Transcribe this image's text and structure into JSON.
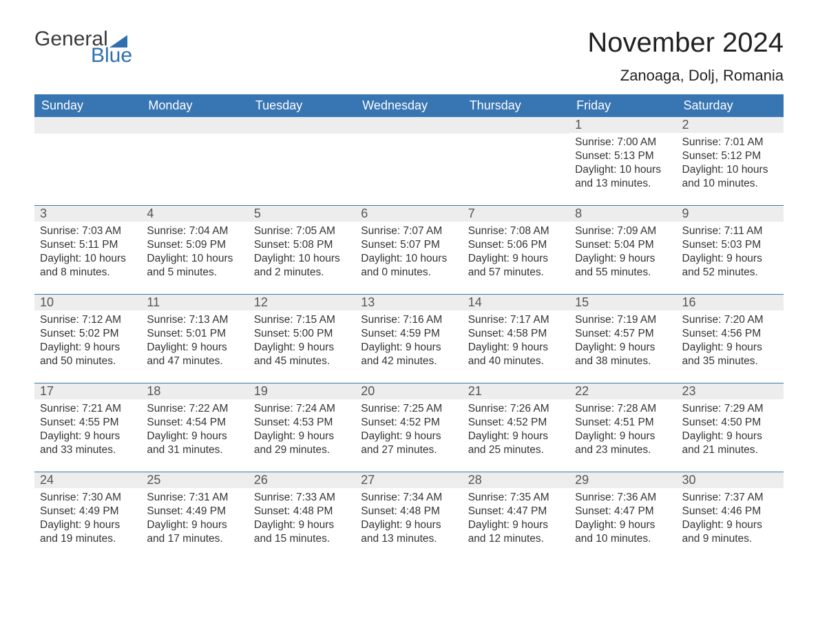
{
  "logo": {
    "text1": "General",
    "text2": "Blue"
  },
  "title": {
    "month": "November 2024",
    "location": "Zanoaga, Dolj, Romania"
  },
  "colors": {
    "header_bg": "#3875b3",
    "header_text": "#ffffff",
    "daynum_bg": "#ededed",
    "daynum_text": "#555555",
    "body_text": "#333333",
    "rule": "#3875b3",
    "logo_blue": "#2f6fb0",
    "page_bg": "#ffffff"
  },
  "weekdays": [
    "Sunday",
    "Monday",
    "Tuesday",
    "Wednesday",
    "Thursday",
    "Friday",
    "Saturday"
  ],
  "weeks": [
    [
      null,
      null,
      null,
      null,
      null,
      {
        "n": "1",
        "sunrise": "7:00 AM",
        "sunset": "5:13 PM",
        "daylight": "10 hours and 13 minutes."
      },
      {
        "n": "2",
        "sunrise": "7:01 AM",
        "sunset": "5:12 PM",
        "daylight": "10 hours and 10 minutes."
      }
    ],
    [
      {
        "n": "3",
        "sunrise": "7:03 AM",
        "sunset": "5:11 PM",
        "daylight": "10 hours and 8 minutes."
      },
      {
        "n": "4",
        "sunrise": "7:04 AM",
        "sunset": "5:09 PM",
        "daylight": "10 hours and 5 minutes."
      },
      {
        "n": "5",
        "sunrise": "7:05 AM",
        "sunset": "5:08 PM",
        "daylight": "10 hours and 2 minutes."
      },
      {
        "n": "6",
        "sunrise": "7:07 AM",
        "sunset": "5:07 PM",
        "daylight": "10 hours and 0 minutes."
      },
      {
        "n": "7",
        "sunrise": "7:08 AM",
        "sunset": "5:06 PM",
        "daylight": "9 hours and 57 minutes."
      },
      {
        "n": "8",
        "sunrise": "7:09 AM",
        "sunset": "5:04 PM",
        "daylight": "9 hours and 55 minutes."
      },
      {
        "n": "9",
        "sunrise": "7:11 AM",
        "sunset": "5:03 PM",
        "daylight": "9 hours and 52 minutes."
      }
    ],
    [
      {
        "n": "10",
        "sunrise": "7:12 AM",
        "sunset": "5:02 PM",
        "daylight": "9 hours and 50 minutes."
      },
      {
        "n": "11",
        "sunrise": "7:13 AM",
        "sunset": "5:01 PM",
        "daylight": "9 hours and 47 minutes."
      },
      {
        "n": "12",
        "sunrise": "7:15 AM",
        "sunset": "5:00 PM",
        "daylight": "9 hours and 45 minutes."
      },
      {
        "n": "13",
        "sunrise": "7:16 AM",
        "sunset": "4:59 PM",
        "daylight": "9 hours and 42 minutes."
      },
      {
        "n": "14",
        "sunrise": "7:17 AM",
        "sunset": "4:58 PM",
        "daylight": "9 hours and 40 minutes."
      },
      {
        "n": "15",
        "sunrise": "7:19 AM",
        "sunset": "4:57 PM",
        "daylight": "9 hours and 38 minutes."
      },
      {
        "n": "16",
        "sunrise": "7:20 AM",
        "sunset": "4:56 PM",
        "daylight": "9 hours and 35 minutes."
      }
    ],
    [
      {
        "n": "17",
        "sunrise": "7:21 AM",
        "sunset": "4:55 PM",
        "daylight": "9 hours and 33 minutes."
      },
      {
        "n": "18",
        "sunrise": "7:22 AM",
        "sunset": "4:54 PM",
        "daylight": "9 hours and 31 minutes."
      },
      {
        "n": "19",
        "sunrise": "7:24 AM",
        "sunset": "4:53 PM",
        "daylight": "9 hours and 29 minutes."
      },
      {
        "n": "20",
        "sunrise": "7:25 AM",
        "sunset": "4:52 PM",
        "daylight": "9 hours and 27 minutes."
      },
      {
        "n": "21",
        "sunrise": "7:26 AM",
        "sunset": "4:52 PM",
        "daylight": "9 hours and 25 minutes."
      },
      {
        "n": "22",
        "sunrise": "7:28 AM",
        "sunset": "4:51 PM",
        "daylight": "9 hours and 23 minutes."
      },
      {
        "n": "23",
        "sunrise": "7:29 AM",
        "sunset": "4:50 PM",
        "daylight": "9 hours and 21 minutes."
      }
    ],
    [
      {
        "n": "24",
        "sunrise": "7:30 AM",
        "sunset": "4:49 PM",
        "daylight": "9 hours and 19 minutes."
      },
      {
        "n": "25",
        "sunrise": "7:31 AM",
        "sunset": "4:49 PM",
        "daylight": "9 hours and 17 minutes."
      },
      {
        "n": "26",
        "sunrise": "7:33 AM",
        "sunset": "4:48 PM",
        "daylight": "9 hours and 15 minutes."
      },
      {
        "n": "27",
        "sunrise": "7:34 AM",
        "sunset": "4:48 PM",
        "daylight": "9 hours and 13 minutes."
      },
      {
        "n": "28",
        "sunrise": "7:35 AM",
        "sunset": "4:47 PM",
        "daylight": "9 hours and 12 minutes."
      },
      {
        "n": "29",
        "sunrise": "7:36 AM",
        "sunset": "4:47 PM",
        "daylight": "9 hours and 10 minutes."
      },
      {
        "n": "30",
        "sunrise": "7:37 AM",
        "sunset": "4:46 PM",
        "daylight": "9 hours and 9 minutes."
      }
    ]
  ],
  "labels": {
    "sunrise": "Sunrise: ",
    "sunset": "Sunset: ",
    "daylight": "Daylight: "
  }
}
